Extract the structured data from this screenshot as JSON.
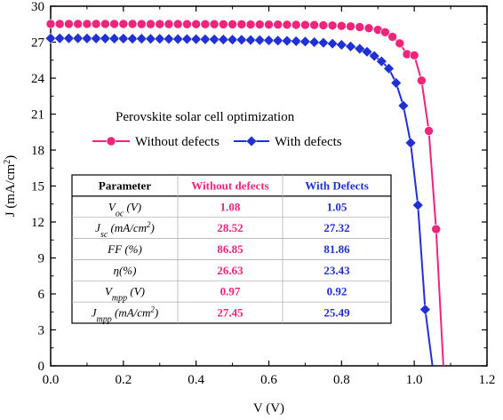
{
  "colors": {
    "without": "#f0247a",
    "with": "#1f31d6",
    "axis": "#000000",
    "table_border": "#000000",
    "table_grid": "#b0b0b0"
  },
  "chart_data": {
    "type": "line",
    "title": "Perovskite solar cell optimization",
    "xlabel": "V (V)",
    "ylabel": "J (mA/cm²)",
    "xlim": [
      0.0,
      1.2
    ],
    "ylim": [
      0,
      30
    ],
    "x_ticks": [
      "0.0",
      "0.2",
      "0.4",
      "0.6",
      "0.8",
      "1.0",
      "1.2"
    ],
    "y_ticks": [
      "0",
      "3",
      "6",
      "9",
      "12",
      "15",
      "18",
      "21",
      "24",
      "27",
      "30"
    ],
    "grid": false,
    "legend_position": "center-left",
    "series": [
      {
        "name": "Without defects",
        "marker": "circle",
        "color": "#f0247a",
        "points": [
          [
            0.0,
            28.52
          ],
          [
            0.025,
            28.52
          ],
          [
            0.05,
            28.52
          ],
          [
            0.075,
            28.52
          ],
          [
            0.1,
            28.52
          ],
          [
            0.125,
            28.52
          ],
          [
            0.15,
            28.52
          ],
          [
            0.175,
            28.52
          ],
          [
            0.2,
            28.52
          ],
          [
            0.225,
            28.52
          ],
          [
            0.25,
            28.51
          ],
          [
            0.275,
            28.51
          ],
          [
            0.3,
            28.51
          ],
          [
            0.325,
            28.51
          ],
          [
            0.35,
            28.51
          ],
          [
            0.375,
            28.5
          ],
          [
            0.4,
            28.5
          ],
          [
            0.425,
            28.5
          ],
          [
            0.45,
            28.5
          ],
          [
            0.475,
            28.49
          ],
          [
            0.5,
            28.49
          ],
          [
            0.525,
            28.49
          ],
          [
            0.55,
            28.48
          ],
          [
            0.575,
            28.48
          ],
          [
            0.6,
            28.47
          ],
          [
            0.625,
            28.47
          ],
          [
            0.65,
            28.46
          ],
          [
            0.675,
            28.45
          ],
          [
            0.7,
            28.44
          ],
          [
            0.725,
            28.43
          ],
          [
            0.75,
            28.41
          ],
          [
            0.775,
            28.39
          ],
          [
            0.8,
            28.36
          ],
          [
            0.825,
            28.32
          ],
          [
            0.85,
            28.26
          ],
          [
            0.875,
            28.17
          ],
          [
            0.9,
            28.03
          ],
          [
            0.92,
            27.83
          ],
          [
            0.94,
            27.45
          ],
          [
            0.96,
            26.9
          ],
          [
            0.98,
            26.0
          ],
          [
            1.0,
            25.9
          ],
          [
            1.02,
            23.8
          ],
          [
            1.04,
            19.6
          ],
          [
            1.06,
            11.4
          ],
          [
            1.08,
            0.0
          ]
        ]
      },
      {
        "name": "With defects",
        "marker": "diamond",
        "color": "#1f31d6",
        "points": [
          [
            0.0,
            27.32
          ],
          [
            0.025,
            27.32
          ],
          [
            0.05,
            27.32
          ],
          [
            0.075,
            27.32
          ],
          [
            0.1,
            27.31
          ],
          [
            0.125,
            27.31
          ],
          [
            0.15,
            27.31
          ],
          [
            0.175,
            27.3
          ],
          [
            0.2,
            27.3
          ],
          [
            0.225,
            27.29
          ],
          [
            0.25,
            27.29
          ],
          [
            0.275,
            27.28
          ],
          [
            0.3,
            27.28
          ],
          [
            0.325,
            27.27
          ],
          [
            0.35,
            27.26
          ],
          [
            0.375,
            27.26
          ],
          [
            0.4,
            27.25
          ],
          [
            0.425,
            27.24
          ],
          [
            0.45,
            27.23
          ],
          [
            0.475,
            27.22
          ],
          [
            0.5,
            27.21
          ],
          [
            0.525,
            27.2
          ],
          [
            0.55,
            27.18
          ],
          [
            0.575,
            27.17
          ],
          [
            0.6,
            27.15
          ],
          [
            0.625,
            27.13
          ],
          [
            0.65,
            27.11
          ],
          [
            0.675,
            27.08
          ],
          [
            0.7,
            27.05
          ],
          [
            0.725,
            27.0
          ],
          [
            0.75,
            26.95
          ],
          [
            0.775,
            26.88
          ],
          [
            0.8,
            26.78
          ],
          [
            0.825,
            26.64
          ],
          [
            0.85,
            26.45
          ],
          [
            0.87,
            26.2
          ],
          [
            0.89,
            25.85
          ],
          [
            0.91,
            25.4
          ],
          [
            0.93,
            24.8
          ],
          [
            0.95,
            23.6
          ],
          [
            0.97,
            21.7
          ],
          [
            0.99,
            18.6
          ],
          [
            1.01,
            13.4
          ],
          [
            1.03,
            4.7
          ],
          [
            1.05,
            0.0
          ]
        ]
      }
    ],
    "table": {
      "headers": [
        "Parameter",
        "Without defects",
        "With Defects"
      ],
      "rows": [
        {
          "param_main": "V",
          "param_sub": "oc",
          "param_unit": " (V)",
          "without": "1.08",
          "with": "1.05"
        },
        {
          "param_main": "J",
          "param_sub": "sc",
          "param_unit": " (mA/cm",
          "param_sup": "2",
          "param_close": ")",
          "without": "28.52",
          "with": "27.32"
        },
        {
          "param_main": "FF",
          "param_sub": "",
          "param_unit": " (%)",
          "without": "86.85",
          "with": "81.86"
        },
        {
          "param_main": "η",
          "param_sub": "",
          "param_unit": "(%)",
          "without": "26.63",
          "with": "23.43"
        },
        {
          "param_main": "V",
          "param_sub": "mpp",
          "param_unit": " (V)",
          "without": "0.97",
          "with": "0.92"
        },
        {
          "param_main": "J",
          "param_sub": "mpp",
          "param_unit": " (mA/cm",
          "param_sup": "2",
          "param_close": ")",
          "without": "27.45",
          "with": "25.49"
        }
      ]
    }
  }
}
